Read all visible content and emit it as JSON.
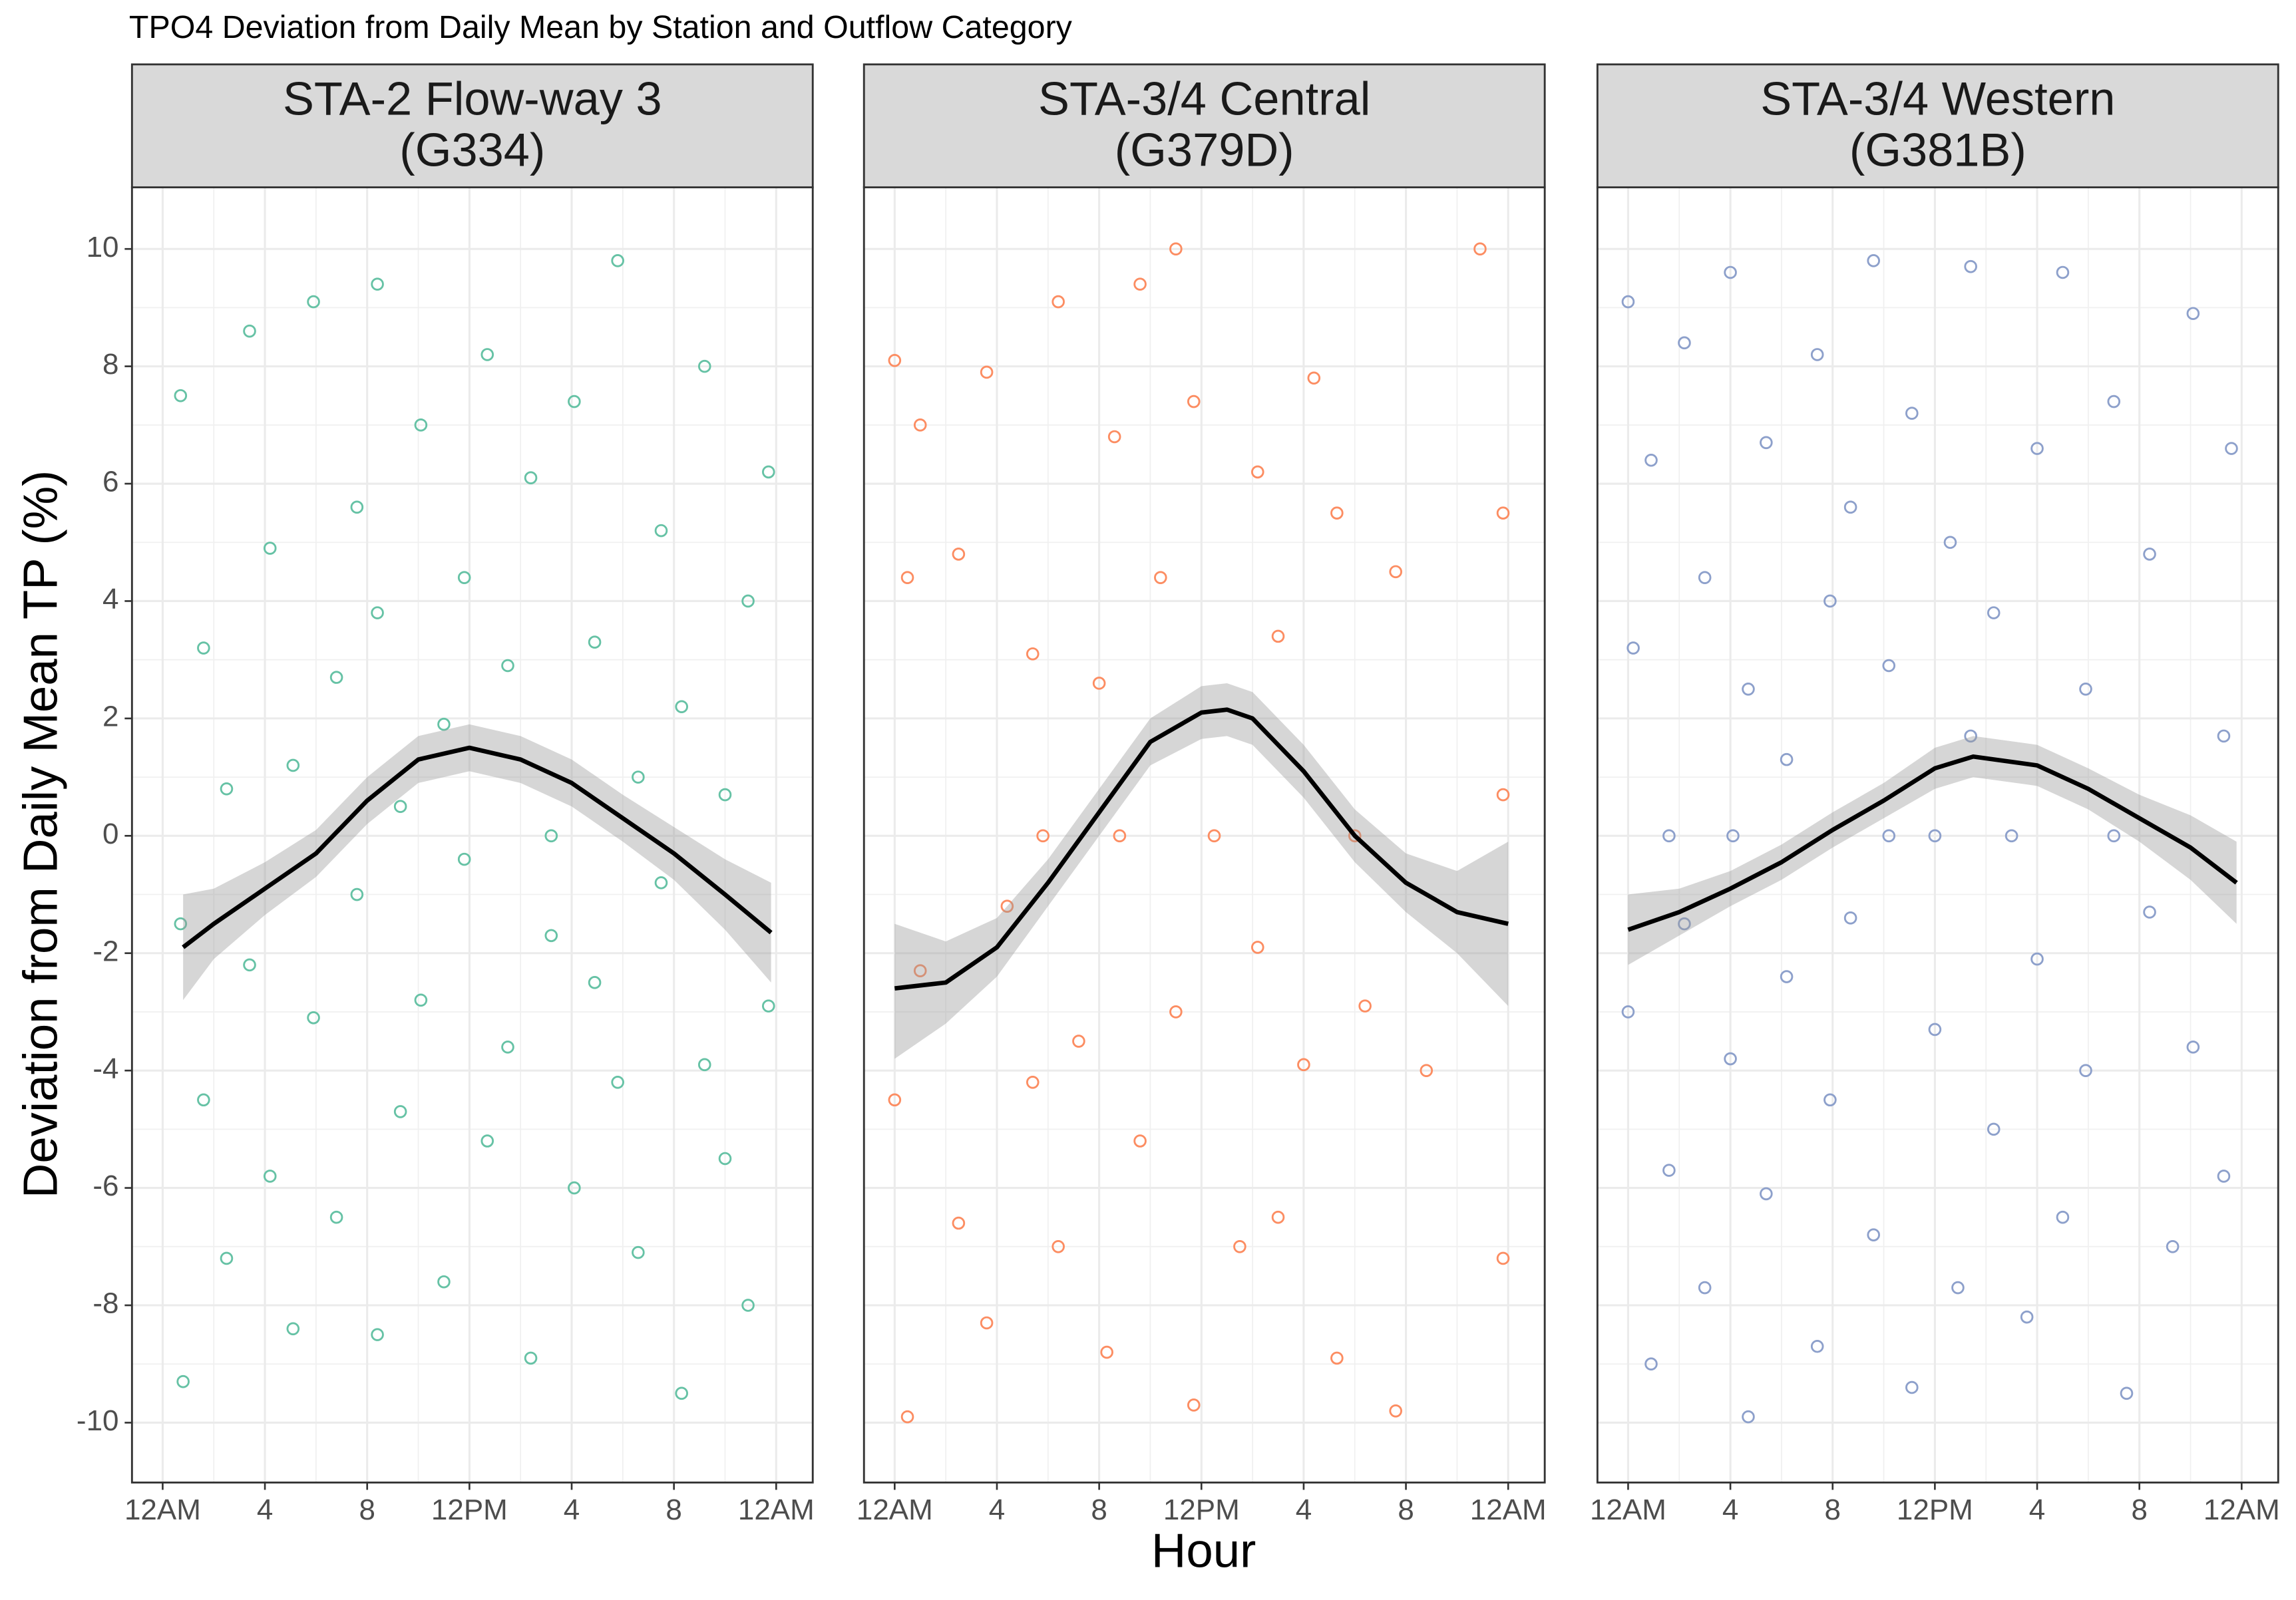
{
  "title": "TPO4 Deviation from Daily Mean by Station and Outflow Category",
  "xlabel": "Hour",
  "ylabel": "Deviation from Daily Mean TP (%)",
  "chart_data": [
    {
      "type": "scatter",
      "title": "STA-2 Flow-way 3",
      "subtitle": "(G334)",
      "color": "#66c2a5",
      "grid": true,
      "xlim": [
        -1.2,
        25.43
      ],
      "ylim": [
        -11.02,
        11.05
      ],
      "xticks": [
        {
          "value": 0,
          "label": "12AM"
        },
        4,
        8,
        {
          "value": 12,
          "label": "12PM"
        },
        {
          "value": 16,
          "label": "4"
        },
        {
          "value": 20,
          "label": "8"
        },
        {
          "value": 24,
          "label": "12AM"
        }
      ],
      "yticks": [
        -10,
        -8,
        -6,
        -4,
        -2,
        0,
        2,
        4,
        6,
        8,
        10
      ],
      "x": [
        0.7,
        0.7,
        0.8,
        1.6,
        1.6,
        2.5,
        2.5,
        3.4,
        3.4,
        4.2,
        4.2,
        5.1,
        5.1,
        5.9,
        5.9,
        6.8,
        6.8,
        7.6,
        7.6,
        8.4,
        8.4,
        8.4,
        9.3,
        9.3,
        10.1,
        10.1,
        11.0,
        11.0,
        11.8,
        11.8,
        12.7,
        12.7,
        13.5,
        13.5,
        14.4,
        14.4,
        15.2,
        15.2,
        16.1,
        16.1,
        16.9,
        16.9,
        17.8,
        17.8,
        18.6,
        18.6,
        19.5,
        19.5,
        20.3,
        20.3,
        21.2,
        21.2,
        22.0,
        22.0,
        22.9,
        22.9,
        23.7,
        23.7
      ],
      "values": [
        -1.5,
        7.5,
        -9.3,
        3.2,
        -4.5,
        0.8,
        -7.2,
        8.6,
        -2.2,
        -5.8,
        4.9,
        1.2,
        -8.4,
        9.1,
        -3.1,
        2.7,
        -6.5,
        5.6,
        -1.0,
        9.4,
        -8.5,
        3.8,
        -4.7,
        0.5,
        7.0,
        -2.8,
        1.9,
        -7.6,
        4.4,
        -0.4,
        8.2,
        -5.2,
        2.9,
        -3.6,
        6.1,
        -8.9,
        0,
        -1.7,
        7.4,
        -6.0,
        3.3,
        -2.5,
        9.8,
        -4.2,
        1.0,
        -7.1,
        5.2,
        -0.8,
        -9.5,
        2.2,
        8.0,
        -3.9,
        0.7,
        -5.5,
        4.0,
        -8.0,
        6.2,
        -2.9
      ],
      "smooth": {
        "x": [
          0.8,
          2,
          4,
          6,
          8,
          10,
          12,
          14,
          16,
          18,
          20,
          22,
          23.8
        ],
        "values": [
          -1.9,
          -1.5,
          -0.9,
          -0.3,
          0.6,
          1.3,
          1.5,
          1.3,
          0.9,
          0.3,
          -0.3,
          -1.0,
          -1.65
        ],
        "lower": [
          -2.8,
          -2.1,
          -1.35,
          -0.7,
          0.2,
          0.9,
          1.1,
          0.9,
          0.5,
          -0.1,
          -0.75,
          -1.6,
          -2.5
        ],
        "upper": [
          -1.0,
          -0.9,
          -0.45,
          0.1,
          1.0,
          1.7,
          1.9,
          1.7,
          1.3,
          0.7,
          0.15,
          -0.4,
          -0.8
        ]
      }
    },
    {
      "type": "scatter",
      "title": "STA-3/4 Central",
      "subtitle": "(G379D)",
      "color": "#fc8d62",
      "grid": true,
      "xlim": [
        -1.2,
        25.43
      ],
      "ylim": [
        -11.02,
        11.05
      ],
      "xticks": [
        {
          "value": 0,
          "label": "12AM"
        },
        4,
        8,
        {
          "value": 12,
          "label": "12PM"
        },
        {
          "value": 16,
          "label": "4"
        },
        {
          "value": 20,
          "label": "8"
        },
        {
          "value": 24,
          "label": "12AM"
        }
      ],
      "yticks": [
        -10,
        -8,
        -6,
        -4,
        -2,
        0,
        2,
        4,
        6,
        8,
        10
      ],
      "x": [
        0,
        0,
        0.5,
        0.5,
        1.0,
        1.0,
        2.5,
        2.5,
        3.6,
        3.6,
        4.4,
        5.4,
        5.4,
        5.8,
        6.4,
        6.4,
        7.2,
        8.0,
        8.3,
        8.6,
        8.8,
        9.6,
        9.6,
        10.4,
        11.0,
        11.0,
        11.7,
        11.7,
        12.5,
        13.5,
        14.2,
        14.2,
        15.0,
        15.0,
        16.0,
        16.4,
        17.3,
        17.3,
        18.0,
        18.4,
        19.6,
        19.6,
        20.8,
        22.9,
        23.8,
        23.8,
        23.8
      ],
      "values": [
        8.1,
        -4.5,
        4.4,
        -9.9,
        7.0,
        -2.3,
        4.8,
        -6.6,
        7.9,
        -8.3,
        -1.2,
        3.1,
        -4.2,
        0,
        9.1,
        -7.0,
        -3.5,
        2.6,
        -8.8,
        6.8,
        0,
        9.4,
        -5.2,
        4.4,
        10,
        -3.0,
        7.4,
        -9.7,
        0,
        -7.0,
        6.2,
        -1.9,
        3.4,
        -6.5,
        -3.9,
        7.8,
        5.5,
        -8.9,
        0,
        -2.9,
        4.5,
        -9.8,
        -4.0,
        10,
        5.5,
        -7.2,
        0.7
      ],
      "smooth": {
        "x": [
          0,
          2,
          4,
          6,
          8,
          10,
          12,
          13,
          14,
          16,
          18,
          20,
          22,
          24
        ],
        "values": [
          -2.6,
          -2.5,
          -1.9,
          -0.8,
          0.4,
          1.6,
          2.1,
          2.15,
          2.0,
          1.1,
          0,
          -0.8,
          -1.3,
          -1.5
        ],
        "lower": [
          -3.8,
          -3.2,
          -2.4,
          -1.2,
          0,
          1.2,
          1.65,
          1.7,
          1.55,
          0.65,
          -0.45,
          -1.3,
          -2.0,
          -2.9
        ],
        "upper": [
          -1.5,
          -1.8,
          -1.4,
          -0.4,
          0.8,
          2.0,
          2.55,
          2.6,
          2.45,
          1.55,
          0.45,
          -0.3,
          -0.6,
          -0.1
        ]
      }
    },
    {
      "type": "scatter",
      "title": "STA-3/4 Western",
      "subtitle": "(G381B)",
      "color": "#8da0cb",
      "grid": true,
      "xlim": [
        -1.2,
        25.43
      ],
      "ylim": [
        -11.02,
        11.05
      ],
      "xticks": [
        {
          "value": 0,
          "label": "12AM"
        },
        4,
        8,
        {
          "value": 12,
          "label": "12PM"
        },
        {
          "value": 16,
          "label": "4"
        },
        {
          "value": 20,
          "label": "8"
        },
        {
          "value": 24,
          "label": "12AM"
        }
      ],
      "yticks": [
        -10,
        -8,
        -6,
        -4,
        -2,
        0,
        2,
        4,
        6,
        8,
        10
      ],
      "x": [
        0,
        0,
        0.2,
        0.9,
        0.9,
        1.6,
        1.6,
        2.2,
        2.2,
        3.0,
        3.0,
        4.0,
        4.0,
        4.1,
        4.7,
        4.7,
        5.4,
        5.4,
        6.2,
        6.2,
        7.4,
        7.4,
        7.9,
        7.9,
        8.7,
        8.7,
        9.6,
        9.6,
        10.2,
        10.2,
        11.1,
        11.1,
        12.0,
        12.0,
        12.6,
        12.9,
        13.4,
        13.4,
        14.3,
        14.3,
        15.0,
        15.6,
        16.0,
        16.0,
        17.0,
        17.0,
        17.9,
        17.9,
        19.0,
        19.0,
        19.5,
        20.4,
        20.4,
        21.3,
        22.1,
        22.1,
        23.3,
        23.3,
        23.6
      ],
      "values": [
        9.1,
        -3.0,
        3.2,
        -9.0,
        6.4,
        0,
        -5.7,
        8.4,
        -1.5,
        4.4,
        -7.7,
        9.6,
        -3.8,
        0,
        2.5,
        -9.9,
        6.7,
        -6.1,
        1.3,
        -2.4,
        8.2,
        -8.7,
        4.0,
        -4.5,
        -1.4,
        5.6,
        9.8,
        -6.8,
        0,
        2.9,
        7.2,
        -9.4,
        0,
        -3.3,
        5.0,
        -7.7,
        1.7,
        9.7,
        -5.0,
        3.8,
        0,
        -8.2,
        6.6,
        -2.1,
        9.6,
        -6.5,
        2.5,
        -4.0,
        0,
        7.4,
        -9.5,
        4.8,
        -1.3,
        -7.0,
        8.9,
        -3.6,
        1.7,
        -5.8,
        6.6
      ],
      "smooth": {
        "x": [
          0,
          2,
          4,
          6,
          8,
          10,
          12,
          13.5,
          16,
          18,
          20,
          22,
          23.8
        ],
        "values": [
          -1.6,
          -1.3,
          -0.9,
          -0.45,
          0.1,
          0.6,
          1.15,
          1.35,
          1.2,
          0.8,
          0.3,
          -0.2,
          -0.8
        ],
        "lower": [
          -2.2,
          -1.7,
          -1.2,
          -0.75,
          -0.2,
          0.3,
          0.8,
          1.0,
          0.85,
          0.45,
          -0.1,
          -0.75,
          -1.5
        ],
        "upper": [
          -1.0,
          -0.9,
          -0.6,
          -0.15,
          0.4,
          0.9,
          1.5,
          1.7,
          1.55,
          1.15,
          0.7,
          0.35,
          -0.1
        ]
      }
    }
  ]
}
